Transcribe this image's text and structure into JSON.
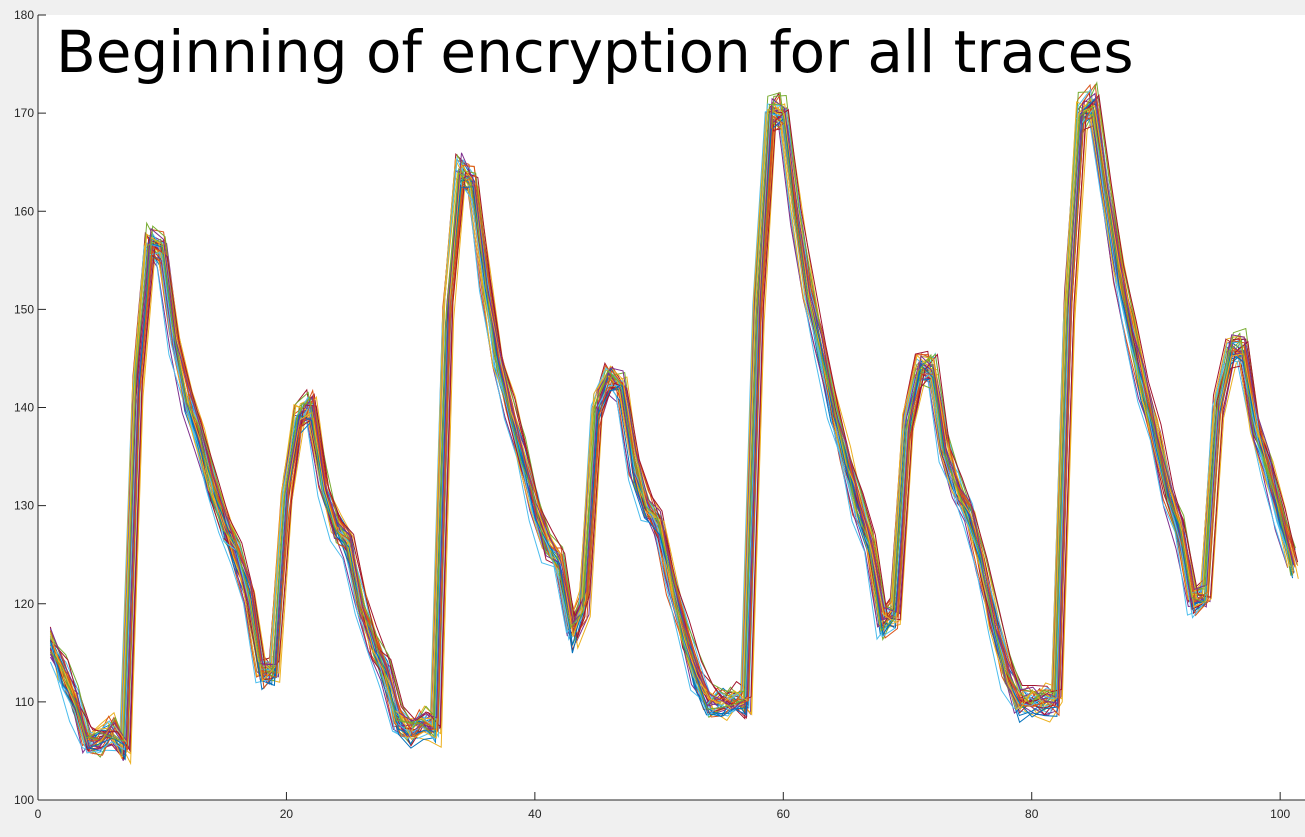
{
  "chart_data": {
    "type": "line",
    "title": "Beginning of encryption for all traces",
    "xlabel": "",
    "ylabel": "",
    "xlim": [
      0,
      102
    ],
    "ylim": [
      100,
      180
    ],
    "x_ticks": [
      0,
      20,
      40,
      60,
      80,
      100
    ],
    "y_ticks": [
      100,
      110,
      120,
      130,
      140,
      150,
      160,
      170,
      180
    ],
    "x_tick_labels": [
      "0",
      "20",
      "40",
      "60",
      "80",
      "100"
    ],
    "y_tick_labels": [
      "100",
      "110",
      "120",
      "130",
      "140",
      "150",
      "160",
      "170",
      "180"
    ],
    "grid": false,
    "legend": "none",
    "series_note": "approximately 40 overlapping traces, samples 1-101; values read approximately from the plot",
    "x": [
      1,
      2,
      3,
      4,
      5,
      6,
      7,
      8,
      9,
      10,
      11,
      12,
      13,
      14,
      15,
      16,
      17,
      18,
      19,
      20,
      21,
      22,
      23,
      24,
      25,
      26,
      27,
      28,
      29,
      30,
      31,
      32,
      33,
      34,
      35,
      36,
      37,
      38,
      39,
      40,
      41,
      42,
      43,
      44,
      45,
      46,
      47,
      48,
      49,
      50,
      51,
      52,
      53,
      54,
      55,
      56,
      57,
      58,
      59,
      60,
      61,
      62,
      63,
      64,
      65,
      66,
      67,
      68,
      69,
      70,
      71,
      72,
      73,
      74,
      75,
      76,
      77,
      78,
      79,
      80,
      81,
      82,
      83,
      84,
      85,
      86,
      87,
      88,
      89,
      90,
      91,
      92,
      93,
      94,
      95,
      96,
      97,
      98,
      99,
      100,
      101
    ],
    "base_trace": [
      116,
      113,
      110,
      106,
      106,
      107,
      105,
      142,
      157,
      156,
      147,
      141,
      137,
      132,
      128,
      125,
      121,
      113,
      113,
      131,
      139,
      140,
      132,
      128,
      126,
      120,
      116,
      113,
      108,
      107,
      108,
      107,
      150,
      164,
      163,
      153,
      145,
      140,
      135,
      130,
      126,
      124,
      117,
      120,
      140,
      143,
      142,
      134,
      130,
      128,
      122,
      117,
      113,
      110,
      110,
      110,
      110,
      150,
      170,
      170,
      160,
      152,
      146,
      140,
      135,
      130,
      126,
      118,
      119,
      138,
      144,
      144,
      136,
      132,
      129,
      124,
      118,
      113,
      110,
      110,
      110,
      110,
      150,
      170,
      171,
      162,
      154,
      148,
      142,
      137,
      131,
      127,
      120,
      121,
      140,
      146,
      146,
      138,
      134,
      129,
      124
    ],
    "colors": [
      "#0072bd",
      "#d95319",
      "#edb120",
      "#7e2f8e",
      "#77ac30",
      "#4dbeee",
      "#a2142f"
    ],
    "axes_background": "#ffffff",
    "figure_background": "#f0f0f0"
  }
}
